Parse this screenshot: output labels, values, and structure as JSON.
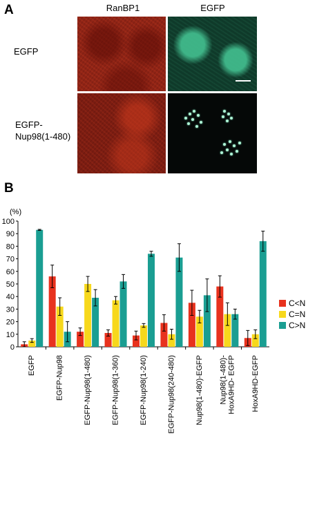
{
  "panel_a": {
    "letter": "A",
    "columns": [
      "RanBP1",
      "EGFP"
    ],
    "rows": [
      {
        "lines": [
          "EGFP"
        ]
      },
      {
        "lines": [
          "EGFP-",
          "Nup98(1-480)"
        ]
      }
    ]
  },
  "panel_b": {
    "letter": "B"
  },
  "colors": {
    "C<N": "#e8321e",
    "C=N": "#f7d81c",
    "C>N": "#1a9e92"
  },
  "chart_data": {
    "type": "bar",
    "ylabel": "(%)",
    "ylim": [
      0,
      100
    ],
    "yticks": [
      0,
      10,
      20,
      30,
      40,
      50,
      60,
      70,
      80,
      90,
      100
    ],
    "categories": [
      "EGFP",
      "EGFP-Nup98",
      "EGFP-Nup98(1-480)",
      "EGFP-Nup98(1-360)",
      "EGFP-Nup98(1-240)",
      "EGFP-Nup98(240-480)",
      "Nup98(1-480)-EGFP",
      [
        "Nup98(1-480)-",
        "HoxA9HD- EGFP"
      ],
      "HoxA9HD-EGFP"
    ],
    "legend_position": "right",
    "series": [
      {
        "name": "C<N",
        "values": [
          2,
          56,
          12,
          11,
          9,
          19,
          35,
          48,
          7
        ],
        "errors": [
          2,
          9,
          3,
          2.5,
          3.5,
          6.5,
          10,
          8.5,
          6
        ]
      },
      {
        "name": "C=N",
        "values": [
          5,
          32,
          50,
          37,
          17,
          10,
          24,
          26,
          10
        ],
        "errors": [
          1.5,
          7,
          6,
          3,
          1.5,
          4,
          5,
          9,
          3.5
        ]
      },
      {
        "name": "C>N",
        "values": [
          93,
          12,
          39,
          52,
          74,
          71,
          41,
          26,
          84
        ],
        "errors": [
          0.4,
          8,
          6.5,
          5.5,
          2,
          11,
          13,
          4,
          8
        ]
      }
    ]
  }
}
